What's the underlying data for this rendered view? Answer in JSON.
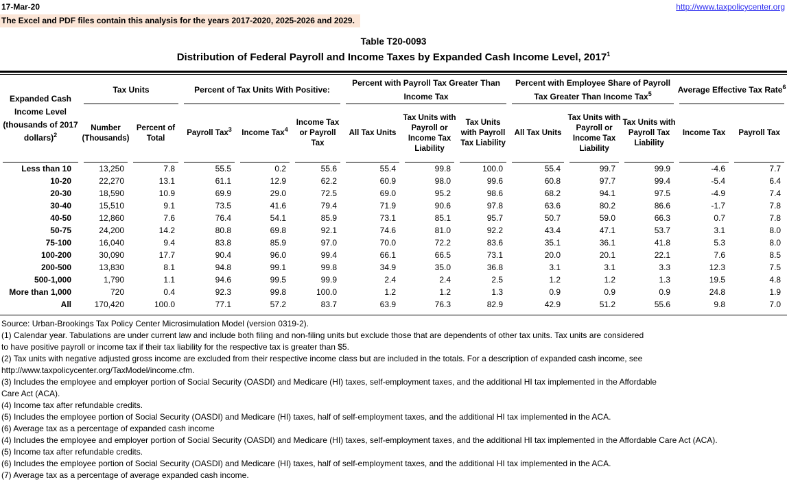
{
  "colors": {
    "highlight_bg": "#FBE5D6",
    "link_blue": "#2B2BEF"
  },
  "header": {
    "date": "17-Mar-20",
    "url": "http://www.taxpolicycenter.org",
    "notice": "The Excel and PDF files contain this analysis for the years 2017-2020, 2025-2026 and 2029."
  },
  "title": {
    "line1": "Table T20-0093",
    "line2": "Distribution of Federal Payroll and Income Taxes by Expanded Cash Income Level, 2017",
    "line2_sup": "1"
  },
  "table": {
    "row_header": {
      "text": "Expanded Cash Income Level (thousands of 2017 dollars)",
      "sup": "2"
    },
    "groups": [
      {
        "label": "Tax Units",
        "sup": ""
      },
      {
        "label": "Percent of Tax Units With Positive:",
        "sup": ""
      },
      {
        "label": "Percent with Payroll Tax Greater Than Income Tax",
        "sup": ""
      },
      {
        "label": "Percent with Employee Share of Payroll Tax Greater Than Income Tax",
        "sup": "5"
      },
      {
        "label": "Average Effective Tax Rate",
        "sup": "6"
      }
    ],
    "columns": [
      {
        "label": "Number (Thousands)",
        "sup": ""
      },
      {
        "label": "Percent of Total",
        "sup": ""
      },
      {
        "label": "Payroll Tax",
        "sup": "3"
      },
      {
        "label": "Income Tax",
        "sup": "4"
      },
      {
        "label": "Income Tax or Payroll Tax",
        "sup": ""
      },
      {
        "label": "All Tax Units",
        "sup": ""
      },
      {
        "label": "Tax Units with Payroll or Income Tax Liability",
        "sup": ""
      },
      {
        "label": "Tax Units with Payroll Tax Liability",
        "sup": ""
      },
      {
        "label": "All Tax Units",
        "sup": ""
      },
      {
        "label": "Tax Units with Payroll or Income Tax Liability",
        "sup": ""
      },
      {
        "label": "Tax Units with Payroll Tax Liability",
        "sup": ""
      },
      {
        "label": "Income Tax",
        "sup": ""
      },
      {
        "label": "Payroll Tax",
        "sup": ""
      }
    ],
    "rows": [
      {
        "label": "Less than 10",
        "values": [
          "13,250",
          "7.8",
          "55.5",
          "0.2",
          "55.6",
          "55.4",
          "99.8",
          "100.0",
          "55.4",
          "99.7",
          "99.9",
          "-4.6",
          "7.7"
        ]
      },
      {
        "label": "10-20",
        "values": [
          "22,270",
          "13.1",
          "61.1",
          "12.9",
          "62.2",
          "60.9",
          "98.0",
          "99.6",
          "60.8",
          "97.7",
          "99.4",
          "-5.4",
          "6.4"
        ]
      },
      {
        "label": "20-30",
        "values": [
          "18,590",
          "10.9",
          "69.9",
          "29.0",
          "72.5",
          "69.0",
          "95.2",
          "98.6",
          "68.2",
          "94.1",
          "97.5",
          "-4.9",
          "7.4"
        ]
      },
      {
        "label": "30-40",
        "values": [
          "15,510",
          "9.1",
          "73.5",
          "41.6",
          "79.4",
          "71.9",
          "90.6",
          "97.8",
          "63.6",
          "80.2",
          "86.6",
          "-1.7",
          "7.8"
        ]
      },
      {
        "label": "40-50",
        "values": [
          "12,860",
          "7.6",
          "76.4",
          "54.1",
          "85.9",
          "73.1",
          "85.1",
          "95.7",
          "50.7",
          "59.0",
          "66.3",
          "0.7",
          "7.8"
        ]
      },
      {
        "label": "50-75",
        "values": [
          "24,200",
          "14.2",
          "80.8",
          "69.8",
          "92.1",
          "74.6",
          "81.0",
          "92.2",
          "43.4",
          "47.1",
          "53.7",
          "3.1",
          "8.0"
        ]
      },
      {
        "label": "75-100",
        "values": [
          "16,040",
          "9.4",
          "83.8",
          "85.9",
          "97.0",
          "70.0",
          "72.2",
          "83.6",
          "35.1",
          "36.1",
          "41.8",
          "5.3",
          "8.0"
        ]
      },
      {
        "label": "100-200",
        "values": [
          "30,090",
          "17.7",
          "90.4",
          "96.0",
          "99.4",
          "66.1",
          "66.5",
          "73.1",
          "20.0",
          "20.1",
          "22.1",
          "7.6",
          "8.5"
        ]
      },
      {
        "label": "200-500",
        "values": [
          "13,830",
          "8.1",
          "94.8",
          "99.1",
          "99.8",
          "34.9",
          "35.0",
          "36.8",
          "3.1",
          "3.1",
          "3.3",
          "12.3",
          "7.5"
        ]
      },
      {
        "label": "500-1,000",
        "values": [
          "1,790",
          "1.1",
          "94.6",
          "99.5",
          "99.9",
          "2.4",
          "2.4",
          "2.5",
          "1.2",
          "1.2",
          "1.3",
          "19.5",
          "4.8"
        ]
      },
      {
        "label": "More than 1,000",
        "values": [
          "720",
          "0.4",
          "92.3",
          "99.8",
          "100.0",
          "1.2",
          "1.2",
          "1.3",
          "0.9",
          "0.9",
          "0.9",
          "24.8",
          "1.9"
        ]
      },
      {
        "label": "All",
        "values": [
          "170,420",
          "100.0",
          "77.1",
          "57.2",
          "83.7",
          "63.9",
          "76.3",
          "82.9",
          "42.9",
          "51.2",
          "55.6",
          "9.8",
          "7.0"
        ]
      }
    ]
  },
  "footnotes": [
    "Source: Urban-Brookings Tax Policy Center Microsimulation Model (version 0319-2).",
    "(1) Calendar year. Tabulations are under current law and include both filing and non-filing units but exclude those that are dependents of other tax units.  Tax units are considered",
    "to have positive payroll or income tax if their tax liability for the respective tax is greater than $5.",
    "(2) Tax units with negative adjusted gross income are excluded from their respective income class but are included in the totals. For a description of expanded cash income, see",
    "http://www.taxpolicycenter.org/TaxModel/income.cfm.",
    "(3) Includes the employee and employer portion of Social Security (OASDI) and Medicare (HI) taxes, self-employment taxes, and the additional HI tax implemented in the Affordable",
    "Care Act (ACA).",
    "(4) Income tax after refundable credits.",
    "(5) Includes the employee portion of Social Security (OASDI) and Medicare (HI) taxes, half of self-employment taxes, and the additional HI tax implemented in the ACA.",
    "(6) Average tax as a percentage of expanded cash income",
    "(4) Includes the employee and employer portion of Social Security (OASDI) and Medicare (HI) taxes, self-employment taxes, and the additional HI tax implemented in the Affordable Care Act (ACA).",
    "(5) Income tax after refundable credits.",
    "(6) Includes the employee portion of Social Security (OASDI) and Medicare (HI) taxes, half of self-employment taxes, and the additional HI tax implemented in the ACA.",
    "(7) Average tax as a percentage of average expanded cash income."
  ]
}
